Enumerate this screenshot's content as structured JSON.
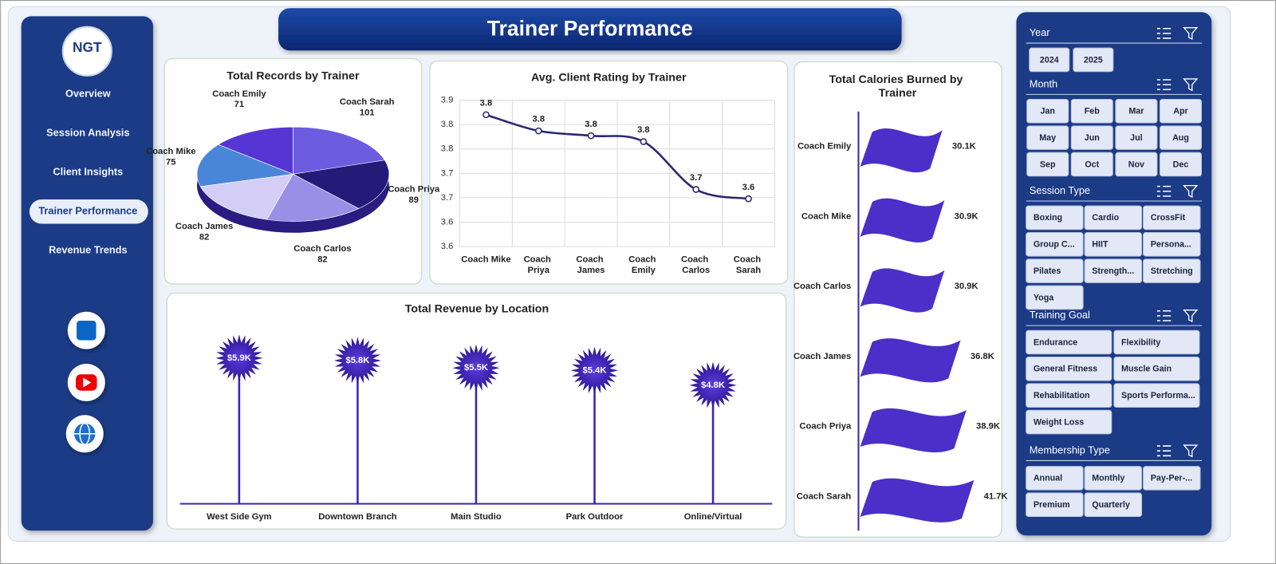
{
  "nav": {
    "logo": "NGT",
    "items": [
      "Overview",
      "Session Analysis",
      "Client Insights",
      "Trainer Performance",
      "Revenue Trends"
    ],
    "active": 3
  },
  "header": {
    "title": "Trainer Performance"
  },
  "chart_data": [
    {
      "type": "pie",
      "title": "Total Records by Trainer",
      "categories": [
        "Coach Sarah",
        "Coach Priya",
        "Coach Carlos",
        "Coach James",
        "Coach Mike",
        "Coach Emily"
      ],
      "values": [
        101,
        89,
        82,
        82,
        75,
        71
      ],
      "colors": [
        "#6c5ce0",
        "#241a78",
        "#9a8ee6",
        "#d4cef6",
        "#4a86d8",
        "#5535d4"
      ]
    },
    {
      "type": "line",
      "title": "Avg. Client Rating by Trainer",
      "categories": [
        "Coach Mike",
        "Coach Priya",
        "Coach James",
        "Coach Emily",
        "Coach Carlos",
        "Coach Sarah"
      ],
      "values": [
        3.82,
        3.787,
        3.777,
        3.765,
        3.667,
        3.648
      ],
      "value_labels": [
        "3.8",
        "3.8",
        "3.8",
        "3.8",
        "3.7",
        "3.6"
      ],
      "color": "#2b2670",
      "ylim": [
        3.55,
        3.85
      ],
      "yticks": [
        {
          "value": 3.55,
          "label": "3.6"
        },
        {
          "value": 3.6,
          "label": "3.6"
        },
        {
          "value": 3.65,
          "label": "3.7"
        },
        {
          "value": 3.7,
          "label": "3.7"
        },
        {
          "value": 3.75,
          "label": "3.8"
        },
        {
          "value": 3.8,
          "label": "3.8"
        },
        {
          "value": 3.85,
          "label": "3.9"
        }
      ],
      "grid": true
    },
    {
      "type": "flag",
      "title": "Total Calories Burned by Trainer",
      "categories": [
        "Coach Emily",
        "Coach Mike",
        "Coach Carlos",
        "Coach James",
        "Coach Priya",
        "Coach Sarah"
      ],
      "values": [
        30100,
        30900,
        30900,
        36800,
        38900,
        41700
      ],
      "value_labels": [
        "30.1K",
        "30.9K",
        "30.9K",
        "36.8K",
        "38.9K",
        "41.7K"
      ],
      "color": "#4a30c8"
    },
    {
      "type": "lollipop",
      "title": "Total Revenue by Location",
      "categories": [
        "West Side Gym",
        "Downtown Branch",
        "Main Studio",
        "Park Outdoor",
        "Online/Virtual"
      ],
      "values": [
        5900,
        5800,
        5500,
        5400,
        4800
      ],
      "value_labels": [
        "$5.9K",
        "$5.8K",
        "$5.5K",
        "$5.4K",
        "$4.8K"
      ],
      "color": "#3d22b8"
    }
  ],
  "slicers": [
    {
      "title": "Year",
      "options": [
        "2024",
        "2025"
      ]
    },
    {
      "title": "Month",
      "options": [
        "Jan",
        "Feb",
        "Mar",
        "Apr",
        "May",
        "Jun",
        "Jul",
        "Aug",
        "Sep",
        "Oct",
        "Nov",
        "Dec"
      ]
    },
    {
      "title": "Session Type",
      "options": [
        "Boxing",
        "Cardio",
        "CrossFit",
        "Group C...",
        "HIIT",
        "Persona...",
        "Pilates",
        "Strength...",
        "Stretching",
        "Yoga"
      ]
    },
    {
      "title": "Training Goal",
      "options": [
        "Endurance",
        "Flexibility",
        "General Fitness",
        "Muscle Gain",
        "Rehabilitation",
        "Sports Performa...",
        "Weight Loss"
      ]
    },
    {
      "title": "Membership Type",
      "options": [
        "Annual",
        "Monthly",
        "Pay-Per-...",
        "Premium",
        "Quarterly"
      ]
    }
  ]
}
